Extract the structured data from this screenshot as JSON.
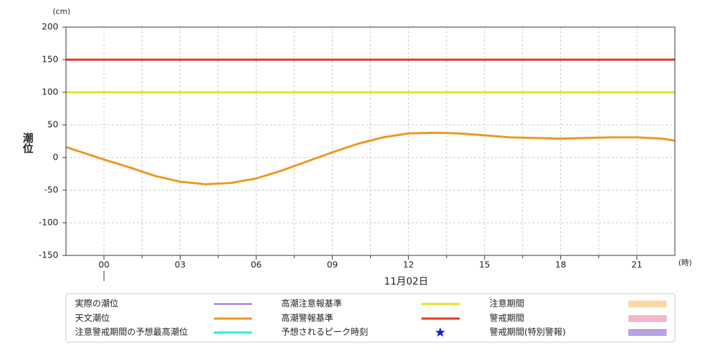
{
  "chart_data": {
    "type": "line",
    "y_unit": "(cm)",
    "x_unit": "(時)",
    "y_label": "潮位",
    "x_date_label": "11月02日",
    "x": [
      -1.5,
      0,
      1,
      2,
      3,
      4,
      5,
      6,
      7,
      8,
      9,
      10,
      11,
      12,
      13,
      14,
      15,
      16,
      17,
      18,
      19,
      20,
      21,
      22,
      22.5
    ],
    "series": [
      {
        "name": "天文潮位",
        "color": "#f0961e",
        "values": [
          16,
          -3,
          -15,
          -28,
          -37,
          -41,
          -39,
          -32,
          -20,
          -6,
          8,
          21,
          31,
          37,
          38,
          37,
          34,
          31,
          30,
          29,
          30,
          31,
          31,
          29,
          26
        ]
      }
    ],
    "reference_lines": [
      {
        "name": "高潮注意報基準",
        "value": 100,
        "color": "#e6e020"
      },
      {
        "name": "高潮警報基準",
        "value": 150,
        "color": "#e0341e"
      }
    ],
    "legend_items": [
      {
        "name": "実際の潮位",
        "color": "#5a1ea0",
        "marker": "line"
      },
      {
        "name": "注意警戒期間の予想最高潮位",
        "color": "#22eeee",
        "marker": "line"
      },
      {
        "name": "予想されるピーク時刻",
        "color": "#1020d0",
        "marker": "star"
      },
      {
        "name": "注意期間",
        "color": "#fbd9a8",
        "marker": "swatch"
      },
      {
        "name": "警戒期間",
        "color": "#f8b4cc",
        "marker": "swatch"
      },
      {
        "name": "警戒期間(特別警報)",
        "color": "#b6a2e0",
        "marker": "swatch"
      }
    ],
    "xlim": [
      -1.5,
      22.5
    ],
    "ylim": [
      -150,
      200
    ],
    "xticks": [
      {
        "value": 0,
        "label": "00"
      },
      {
        "value": 3,
        "label": "03"
      },
      {
        "value": 6,
        "label": "06"
      },
      {
        "value": 9,
        "label": "09"
      },
      {
        "value": 12,
        "label": "12"
      },
      {
        "value": 15,
        "label": "15"
      },
      {
        "value": 18,
        "label": "18"
      },
      {
        "value": 21,
        "label": "21"
      }
    ],
    "xminorticks": [
      1.5,
      4.5,
      7.5,
      10.5,
      13.5,
      16.5,
      19.5
    ],
    "yticks": [
      -150,
      -100,
      -50,
      0,
      50,
      100,
      150,
      200
    ],
    "grid": true
  }
}
